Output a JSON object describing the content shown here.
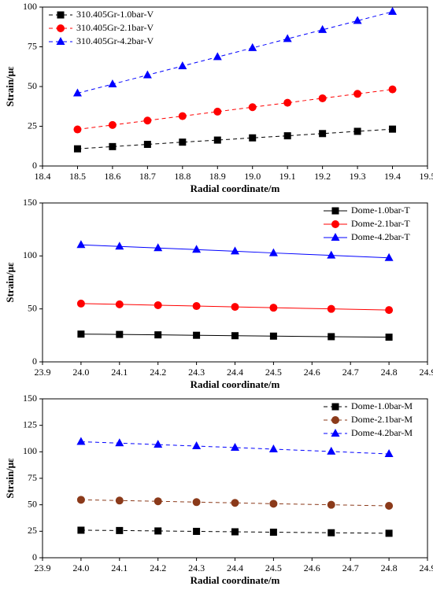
{
  "chart_data": [
    {
      "type": "line",
      "xlabel": "Radial coordinate/m",
      "ylabel": "Strain/με",
      "x": [
        18.5,
        18.6,
        18.7,
        18.8,
        18.9,
        19.0,
        19.1,
        19.2,
        19.3,
        19.4
      ],
      "xlim": [
        18.4,
        19.5
      ],
      "xticks": [
        18.4,
        18.5,
        18.6,
        18.7,
        18.8,
        18.9,
        {
          "value": 19.0,
          "label": "19.0"
        },
        19.1,
        19.2,
        19.3,
        19.4,
        19.5
      ],
      "ylim": [
        0,
        100
      ],
      "yticks": [
        0,
        25,
        50,
        75,
        100
      ],
      "legend": "top-left",
      "linestyle": "dashed",
      "series": [
        {
          "name": "310.405Gr-1.0bar-V",
          "color": "#000000",
          "marker": "square",
          "values": [
            10.8,
            12.2,
            13.6,
            15.0,
            16.3,
            17.7,
            19.0,
            20.4,
            21.8,
            23.2
          ]
        },
        {
          "name": "310.405Gr-2.1bar-V",
          "color": "#ff0000",
          "marker": "circle",
          "values": [
            23.0,
            25.8,
            28.6,
            31.4,
            34.2,
            37.0,
            39.8,
            42.6,
            45.4,
            48.2
          ]
        },
        {
          "name": "310.405Gr-4.2bar-V",
          "color": "#0000ff",
          "marker": "triangle",
          "values": [
            45.8,
            51.5,
            57.2,
            62.9,
            68.6,
            74.3,
            80.0,
            85.7,
            91.4,
            97.1
          ]
        }
      ]
    },
    {
      "type": "line",
      "xlabel": "Radial coordinate/m",
      "ylabel": "Strain/με",
      "x": [
        24.0,
        24.1,
        24.2,
        24.3,
        24.4,
        24.5,
        24.65,
        24.8
      ],
      "xlim": [
        23.9,
        24.9
      ],
      "xticks": [
        23.9,
        {
          "value": 24.0,
          "label": "24.0"
        },
        24.1,
        24.2,
        24.3,
        24.4,
        24.5,
        24.6,
        24.7,
        24.8,
        24.9
      ],
      "ylim": [
        0,
        150
      ],
      "yticks": [
        0,
        50,
        100,
        150
      ],
      "legend": "top-right",
      "linestyle": "solid",
      "series": [
        {
          "name": "Dome-1.0bar-T",
          "color": "#000000",
          "marker": "square",
          "values": [
            26.2,
            25.9,
            25.5,
            25.1,
            24.7,
            24.3,
            23.8,
            23.3
          ]
        },
        {
          "name": "Dome-2.1bar-T",
          "color": "#ff0000",
          "marker": "circle",
          "values": [
            55.0,
            54.3,
            53.5,
            52.7,
            51.9,
            51.1,
            50.0,
            48.9
          ]
        },
        {
          "name": "Dome-4.2bar-T",
          "color": "#0000ff",
          "marker": "triangle",
          "values": [
            110.5,
            109.0,
            107.5,
            106.0,
            104.4,
            102.8,
            100.5,
            98.2
          ]
        }
      ]
    },
    {
      "type": "line",
      "xlabel": "Radial coordinate/m",
      "ylabel": "Strain/με",
      "x": [
        24.0,
        24.1,
        24.2,
        24.3,
        24.4,
        24.5,
        24.65,
        24.8
      ],
      "xlim": [
        23.9,
        24.9
      ],
      "xticks": [
        23.9,
        {
          "value": 24.0,
          "label": "24.0"
        },
        24.1,
        24.2,
        24.3,
        24.4,
        24.5,
        24.6,
        24.7,
        24.8,
        24.9
      ],
      "ylim": [
        0,
        150
      ],
      "yticks": [
        0,
        25,
        50,
        75,
        100,
        125,
        150
      ],
      "legend": "top-right",
      "linestyle": "dashed",
      "series": [
        {
          "name": "Dome-1.0bar-M",
          "color": "#000000",
          "marker": "square",
          "values": [
            26.0,
            25.7,
            25.3,
            24.9,
            24.5,
            24.1,
            23.6,
            23.1
          ]
        },
        {
          "name": "Dome-2.1bar-M",
          "color": "#8b3a1a",
          "marker": "circle",
          "values": [
            54.7,
            54.0,
            53.3,
            52.5,
            51.8,
            51.0,
            50.0,
            49.0
          ]
        },
        {
          "name": "Dome-4.2bar-M",
          "color": "#0000ff",
          "marker": "triangle",
          "values": [
            109.5,
            108.2,
            106.8,
            105.4,
            104.0,
            102.5,
            100.3,
            98.0
          ]
        }
      ]
    }
  ]
}
